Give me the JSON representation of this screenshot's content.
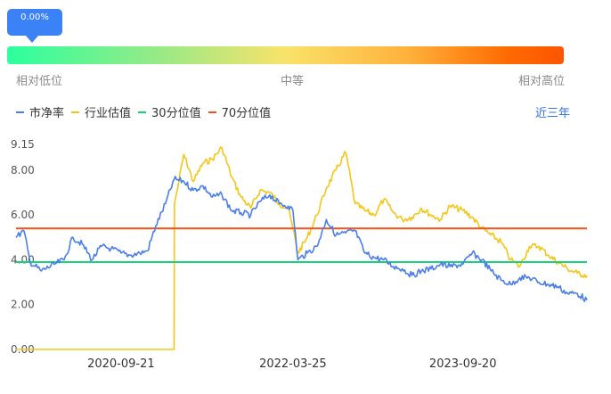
{
  "indicator": {
    "badge_text": "0.00%",
    "scale_low": "相对低位",
    "scale_mid": "中等",
    "scale_high": "相对高位"
  },
  "legend": [
    {
      "label": "市净率",
      "color": "#4a7ee8"
    },
    {
      "label": "行业估值",
      "color": "#f5c518"
    },
    {
      "label": "30分位值",
      "color": "#19d27c"
    },
    {
      "label": "70分位值",
      "color": "#f0531b"
    }
  ],
  "range_toggle": "近三年",
  "chart_data": {
    "type": "line",
    "title": "",
    "xlabel": "",
    "ylabel": "",
    "ylim": [
      0,
      9.15
    ],
    "y_ticks": [
      "9.15",
      "8.00",
      "6.00",
      "4.00",
      "2.00",
      "0.00"
    ],
    "y_tick_values": [
      9.15,
      8.0,
      6.0,
      4.0,
      2.0,
      0.0
    ],
    "x_tick_labels": [
      "2020-09-21",
      "2022-03-25",
      "2023-09-20"
    ],
    "x_tick_dates": [
      "2020-09-21",
      "2022-03-25",
      "2023-09-20"
    ],
    "x_start": "2019-10-21",
    "x_end": "2024-10-21",
    "series": [
      {
        "name": "市净率",
        "color": "#4a7ee8",
        "x": [
          "2019-10-21",
          "2019-11-15",
          "2019-12-05",
          "2020-01-10",
          "2020-02-20",
          "2020-03-23",
          "2020-04-20",
          "2020-05-20",
          "2020-06-20",
          "2020-07-20",
          "2020-08-20",
          "2020-09-21",
          "2020-10-20",
          "2020-11-20",
          "2020-12-15",
          "2021-01-10",
          "2021-02-10",
          "2021-03-10",
          "2021-04-10",
          "2021-05-10",
          "2021-06-10",
          "2021-07-10",
          "2021-08-10",
          "2021-09-10",
          "2021-10-10",
          "2021-11-10",
          "2021-12-10",
          "2022-01-10",
          "2022-02-10",
          "2022-03-10",
          "2022-03-25",
          "2022-04-10",
          "2022-05-10",
          "2022-06-10",
          "2022-07-10",
          "2022-08-10",
          "2022-09-10",
          "2022-10-10",
          "2022-11-10",
          "2022-12-10",
          "2023-01-10",
          "2023-02-10",
          "2023-03-10",
          "2023-04-10",
          "2023-05-10",
          "2023-06-10",
          "2023-07-10",
          "2023-08-10",
          "2023-09-20",
          "2023-10-20",
          "2023-11-20",
          "2023-12-20",
          "2024-01-20",
          "2024-02-20",
          "2024-03-20",
          "2024-04-20",
          "2024-05-20",
          "2024-06-20",
          "2024-07-20",
          "2024-08-20",
          "2024-09-20",
          "2024-10-21"
        ],
        "values": [
          5.0,
          5.3,
          3.9,
          3.5,
          3.8,
          4.0,
          5.0,
          4.7,
          4.0,
          4.6,
          4.5,
          4.3,
          4.2,
          4.3,
          4.4,
          5.5,
          6.5,
          7.6,
          7.5,
          7.1,
          7.3,
          6.8,
          6.9,
          6.2,
          6.1,
          6.0,
          6.6,
          6.9,
          6.5,
          6.4,
          6.2,
          4.0,
          4.3,
          4.6,
          5.8,
          5.1,
          5.2,
          5.3,
          4.3,
          4.1,
          4.0,
          3.7,
          3.6,
          3.3,
          3.5,
          3.6,
          3.8,
          3.7,
          3.8,
          4.3,
          4.0,
          3.5,
          3.1,
          2.9,
          3.2,
          3.2,
          3.0,
          2.9,
          2.8,
          2.5,
          2.5,
          2.2
        ]
      },
      {
        "name": "行业估值",
        "color": "#f5c518",
        "x": [
          "2019-10-21",
          "2021-03-10",
          "2021-03-11",
          "2021-03-25",
          "2021-04-10",
          "2021-05-10",
          "2021-06-10",
          "2021-07-10",
          "2021-08-10",
          "2021-09-10",
          "2021-10-10",
          "2021-11-10",
          "2021-12-10",
          "2022-01-10",
          "2022-02-10",
          "2022-03-10",
          "2022-03-25",
          "2022-04-10",
          "2022-05-10",
          "2022-06-10",
          "2022-07-10",
          "2022-08-10",
          "2022-09-10",
          "2022-10-10",
          "2022-11-10",
          "2022-12-10",
          "2023-01-10",
          "2023-02-10",
          "2023-03-10",
          "2023-04-10",
          "2023-05-10",
          "2023-06-10",
          "2023-07-10",
          "2023-08-10",
          "2023-09-20",
          "2023-10-20",
          "2023-11-20",
          "2023-12-20",
          "2024-01-20",
          "2024-02-20",
          "2024-03-20",
          "2024-04-20",
          "2024-05-20",
          "2024-06-20",
          "2024-07-20",
          "2024-08-20",
          "2024-09-20",
          "2024-10-21"
        ],
        "values": [
          0.0,
          0.0,
          6.5,
          7.5,
          8.7,
          7.5,
          8.3,
          8.5,
          9.0,
          7.7,
          6.8,
          6.3,
          7.1,
          7.0,
          6.5,
          6.3,
          5.4,
          4.3,
          5.0,
          6.0,
          7.2,
          8.0,
          8.8,
          6.5,
          6.2,
          6.0,
          6.7,
          6.1,
          5.8,
          5.9,
          6.3,
          6.0,
          5.8,
          6.4,
          6.2,
          5.9,
          5.4,
          5.1,
          4.8,
          4.0,
          3.7,
          4.6,
          4.6,
          4.2,
          3.9,
          3.6,
          3.4,
          3.3
        ]
      },
      {
        "name": "30分位值",
        "color": "#19d27c",
        "x": [
          "2019-10-21",
          "2024-10-21"
        ],
        "values": [
          3.9,
          3.9
        ]
      },
      {
        "name": "70分位值",
        "color": "#f0531b",
        "x": [
          "2019-10-21",
          "2024-10-21"
        ],
        "values": [
          5.4,
          5.4
        ]
      }
    ]
  }
}
